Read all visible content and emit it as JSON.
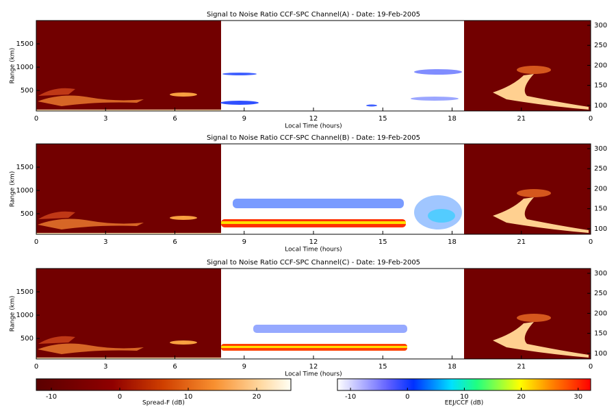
{
  "chart_data": [
    {
      "type": "heatmap",
      "title": "Signal to Noise Ratio CCF-SPC Channel(A) - Date: 19-Feb-2005",
      "xlabel": "Local Time (hours)",
      "ylabel": "Range (km)",
      "xlim": [
        0,
        24
      ],
      "xticks": [
        0,
        3,
        6,
        9,
        12,
        15,
        18,
        21,
        {
          "value": 24,
          "label": "0"
        }
      ],
      "ylim": [
        60,
        2000
      ],
      "yticks": [
        500,
        1000,
        1500
      ],
      "y2lim": [
        86,
        312
      ],
      "y2ticks": [
        100,
        150,
        200,
        250,
        300
      ]
    },
    {
      "type": "heatmap",
      "title": "Signal to Noise Ratio CCF-SPC Channel(B) - Date: 19-Feb-2005",
      "xlabel": "Local Time (hours)",
      "ylabel": "Range (km)",
      "xlim": [
        0,
        24
      ],
      "xticks": [
        0,
        3,
        6,
        9,
        12,
        15,
        18,
        21,
        {
          "value": 24,
          "label": "0"
        }
      ],
      "ylim": [
        60,
        2000
      ],
      "yticks": [
        500,
        1000,
        1500
      ],
      "y2lim": [
        86,
        312
      ],
      "y2ticks": [
        100,
        150,
        200,
        250,
        300
      ]
    },
    {
      "type": "heatmap",
      "title": "Signal to Noise Ratio CCF-SPC Channel(C) - Date: 19-Feb-2005",
      "xlabel": "Local Time (hours)",
      "ylabel": "Range (km)",
      "xlim": [
        0,
        24
      ],
      "xticks": [
        0,
        3,
        6,
        9,
        12,
        15,
        18,
        21,
        {
          "value": 24,
          "label": "0"
        }
      ],
      "ylim": [
        60,
        2000
      ],
      "yticks": [
        500,
        1000,
        1500
      ],
      "y2lim": [
        86,
        312
      ],
      "y2ticks": [
        100,
        150,
        200,
        250,
        300
      ]
    }
  ],
  "colorbars": [
    {
      "label": "Spread-F (dB)",
      "clim": [
        -12.2,
        25
      ],
      "ticks": [
        -10,
        0,
        10,
        20
      ]
    },
    {
      "label": "EEJ/CCF (dB)",
      "clim": [
        -12.3,
        32.2
      ],
      "ticks": [
        -10,
        0,
        10,
        20,
        30
      ]
    }
  ]
}
